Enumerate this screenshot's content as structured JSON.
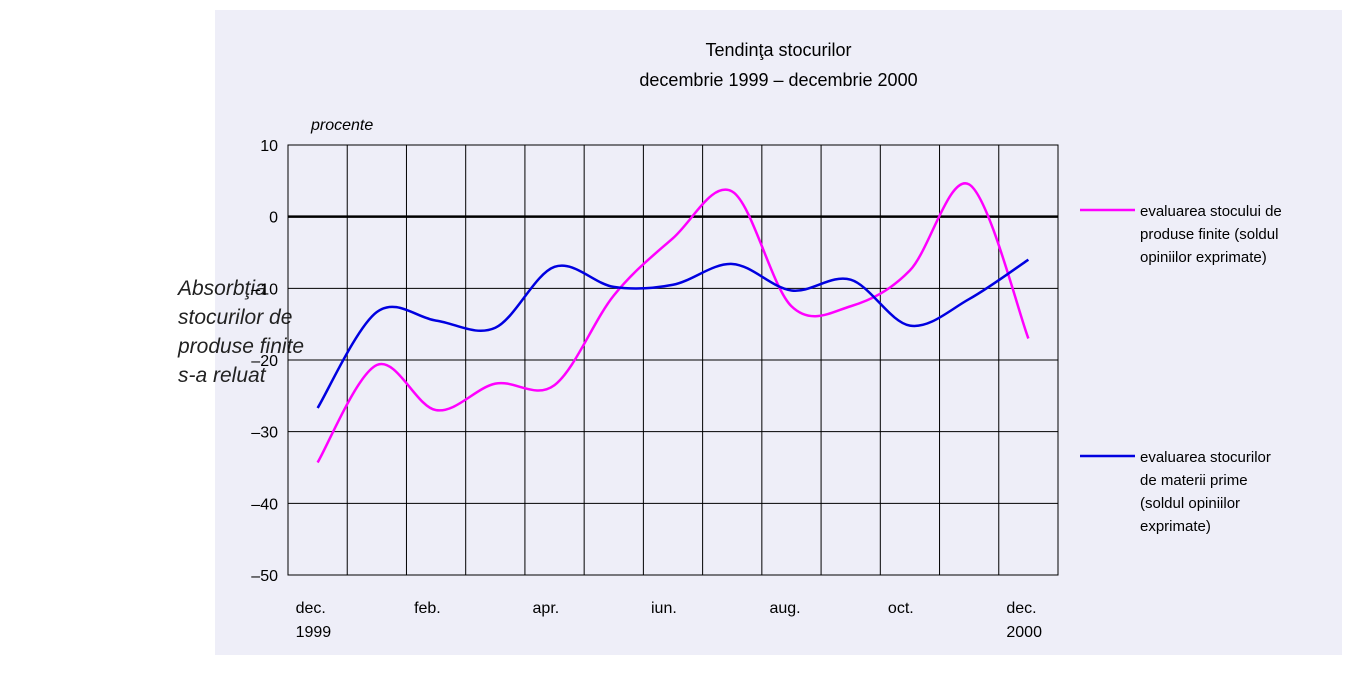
{
  "note_text": "Absorbţia stocurilor de produse finite s-a reluat",
  "chart_data": {
    "type": "line",
    "title": "Tendinţa stocurilor",
    "subtitle": "decembrie 1999 – decembrie 2000",
    "y_label": "procente",
    "categories": [
      "dec. 1999",
      null,
      "feb.",
      null,
      "apr.",
      null,
      "iun.",
      null,
      "aug.",
      null,
      "oct.",
      null,
      "dec. 2000"
    ],
    "series": [
      {
        "name": "evaluarea stocului de produse finite (soldul opiniilor exprimate)",
        "color": "#ff00ff",
        "values": [
          -34.3,
          -20.7,
          -27,
          -23.3,
          -23.5,
          -11,
          -3,
          3.5,
          -12.5,
          -12.5,
          -7.5,
          4.5,
          -17
        ]
      },
      {
        "name": "evaluarea stocurilor de materii prime (soldul opiniilor exprimate)",
        "color": "#0000e0",
        "values": [
          -26.7,
          -13.3,
          -14.5,
          -15.5,
          -7,
          -9.8,
          -9.5,
          -6.6,
          -10.3,
          -8.8,
          -15.2,
          -11.5,
          -6
        ]
      }
    ],
    "ylim": [
      -50,
      10
    ],
    "yticks": [
      {
        "value": -50,
        "label": "–50"
      },
      {
        "value": -40,
        "label": "–40"
      },
      {
        "value": -30,
        "label": "–30"
      },
      {
        "value": -20,
        "label": "–20"
      },
      {
        "value": -10,
        "label": "–10"
      },
      0,
      10
    ],
    "grid": true
  }
}
